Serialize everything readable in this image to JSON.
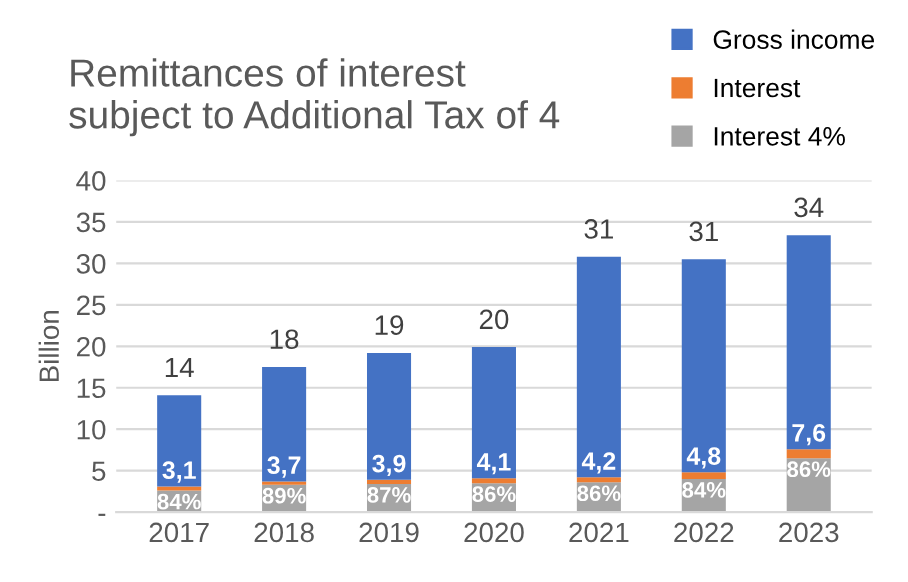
{
  "chart_data": {
    "type": "bar",
    "title": "Remittances of interest\nsubject to Additional Tax of 4",
    "ylabel": "Billion",
    "categories": [
      "2017",
      "2018",
      "2019",
      "2020",
      "2021",
      "2022",
      "2023"
    ],
    "stacked": true,
    "series": [
      {
        "name": "Interest 4%",
        "color": "#a5a5a5",
        "values": [
          2.6,
          3.3,
          3.4,
          3.5,
          3.6,
          4.0,
          6.5
        ]
      },
      {
        "name": "Interest",
        "color": "#ed7d31",
        "values": [
          0.5,
          0.4,
          0.5,
          0.6,
          0.6,
          0.8,
          1.1
        ]
      },
      {
        "name": "Gross income",
        "color": "#4472c4",
        "values": [
          11.0,
          13.8,
          15.3,
          15.8,
          26.6,
          25.7,
          25.8
        ]
      }
    ],
    "annotations": [
      {
        "text": "3,1",
        "x": "2017",
        "y": 3.1
      },
      {
        "text": "3,7",
        "x": "2018",
        "y": 3.7
      },
      {
        "text": "3,9",
        "x": "2019",
        "y": 3.9
      },
      {
        "text": "4,1",
        "x": "2020",
        "y": 4.1
      },
      {
        "text": "4,2",
        "x": "2021",
        "y": 4.2
      },
      {
        "text": "4,8",
        "x": "2022",
        "y": 4.8
      },
      {
        "text": "7,6",
        "x": "2023",
        "y": 7.6
      },
      {
        "text": "84%",
        "x": "2017",
        "y": 2.6
      },
      {
        "text": "89%",
        "x": "2018",
        "y": 3.3
      },
      {
        "text": "87%",
        "x": "2019",
        "y": 3.4
      },
      {
        "text": "86%",
        "x": "2020",
        "y": 3.5
      },
      {
        "text": "86%",
        "x": "2021",
        "y": 3.6
      },
      {
        "text": "84%",
        "x": "2022",
        "y": 4.0
      },
      {
        "text": "86%",
        "x": "2023",
        "y": 6.5
      }
    ],
    "totals": [
      "14",
      "18",
      "19",
      "20",
      "31",
      "31",
      "34"
    ],
    "ylim": [
      0,
      40
    ],
    "yticks": [
      {
        "value": 0,
        "label": "-"
      },
      5,
      10,
      15,
      20,
      25,
      30,
      35,
      40
    ],
    "grid": "y",
    "legend": "top right"
  }
}
